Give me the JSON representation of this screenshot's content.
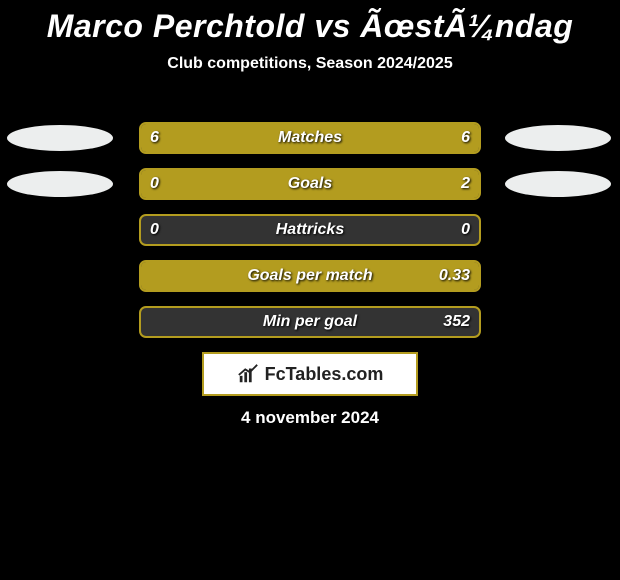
{
  "title": "Marco Perchtold vs ÃœstÃ¼ndag",
  "subtitle": "Club competitions, Season 2024/2025",
  "date_text": "4 november 2024",
  "logo_text": "FcTables.com",
  "colors": {
    "background": "#000000",
    "bar_bg": "#333333",
    "bar_fill": "#b39c1f",
    "outline": "#b39c1f",
    "text": "#ffffff",
    "ellipse": "#eceeee",
    "logo_bg": "#ffffff",
    "logo_border": "#b39c1f",
    "logo_text": "#222222"
  },
  "rows": [
    {
      "label": "Matches",
      "left_value": "6",
      "right_value": "6",
      "left_fill_pct": 50,
      "right_fill_pct": 50,
      "show_ellipses": true
    },
    {
      "label": "Goals",
      "left_value": "0",
      "right_value": "2",
      "left_fill_pct": 20,
      "right_fill_pct": 80,
      "show_ellipses": true
    },
    {
      "label": "Hattricks",
      "left_value": "0",
      "right_value": "0",
      "left_fill_pct": 0,
      "right_fill_pct": 0,
      "show_ellipses": false
    },
    {
      "label": "Goals per match",
      "left_value": "",
      "right_value": "0.33",
      "left_fill_pct": 0,
      "right_fill_pct": 100,
      "show_ellipses": false
    },
    {
      "label": "Min per goal",
      "left_value": "",
      "right_value": "352",
      "left_fill_pct": 0,
      "right_fill_pct": 0,
      "show_ellipses": false
    }
  ]
}
